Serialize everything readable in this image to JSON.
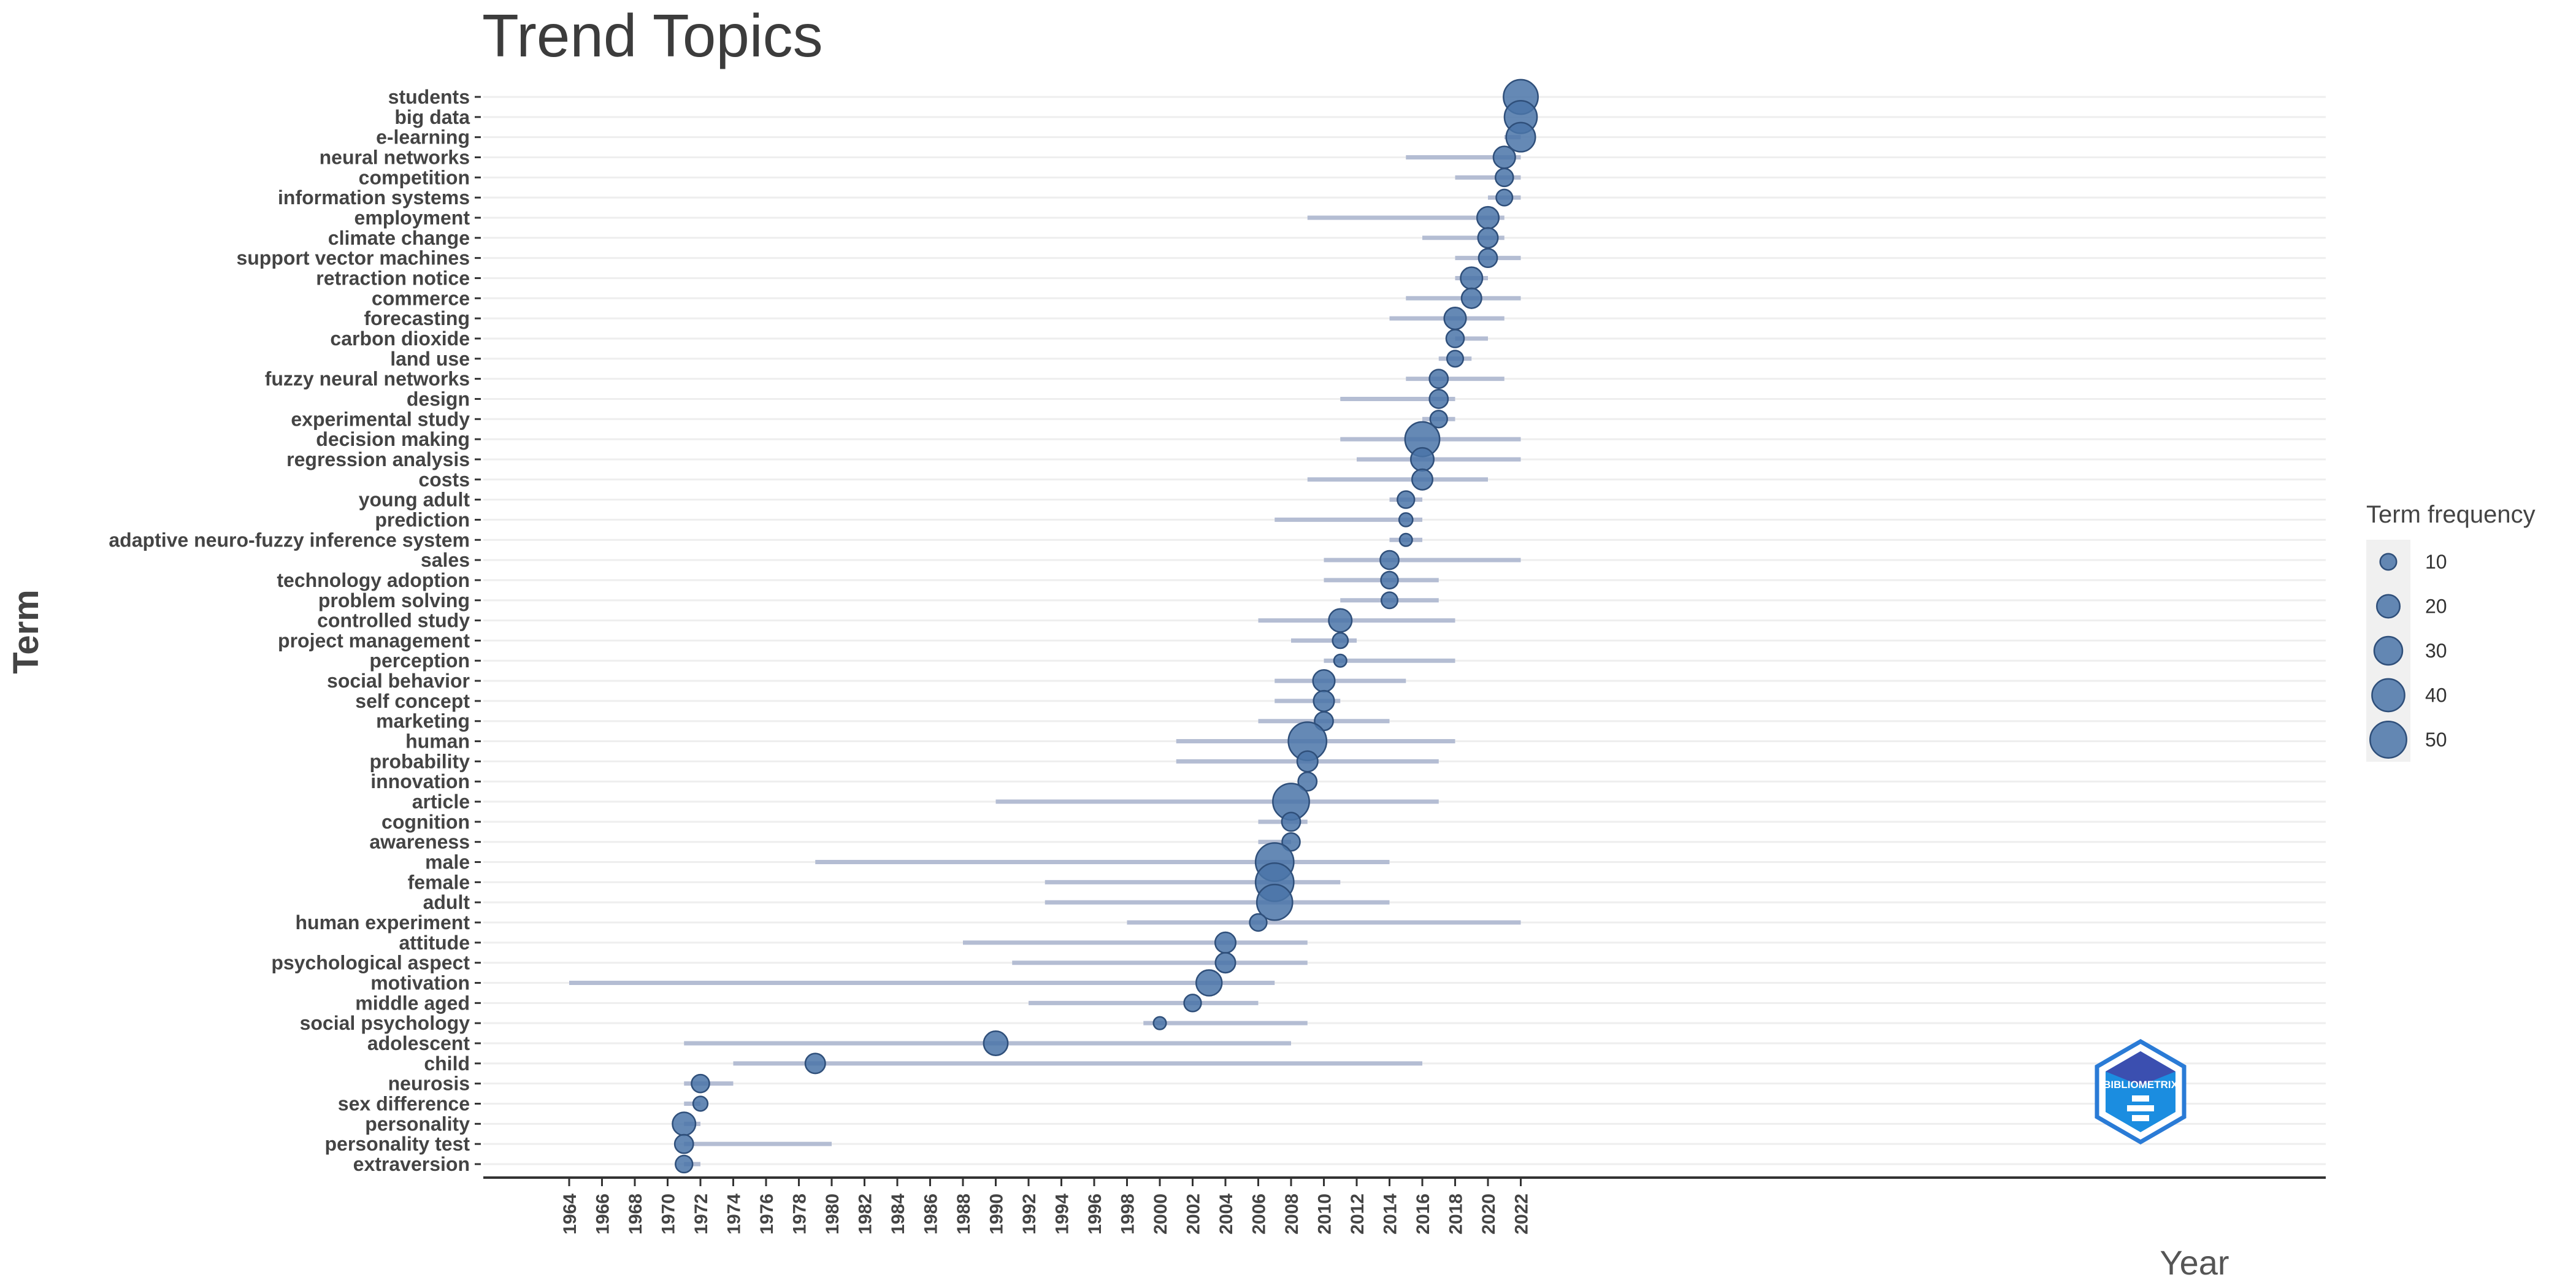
{
  "chart_data": {
    "type": "scatter",
    "title": "Trend Topics",
    "xlabel": "Year",
    "ylabel": "Term",
    "xlim": [
      1962,
      2025
    ],
    "x_ticks": [
      1964,
      1966,
      1968,
      1970,
      1972,
      1974,
      1976,
      1978,
      1980,
      1982,
      1984,
      1986,
      1988,
      1990,
      1992,
      1994,
      1996,
      1998,
      2000,
      2002,
      2004,
      2006,
      2008,
      2010,
      2012,
      2014,
      2016,
      2018,
      2020,
      2022
    ],
    "grid": "horizontal",
    "legend": {
      "title": "Term frequency",
      "placement": "right",
      "values": [
        10,
        20,
        30,
        40,
        50
      ]
    },
    "colors": {
      "point": "#4a74a8",
      "point_stroke": "#2f4f7a",
      "range_line": "#b4bdd3",
      "grid": "#eeeeee",
      "axis": "#333333"
    },
    "terms": [
      {
        "term": "students",
        "year_q1": 2022,
        "year_median": 2022,
        "year_q3": 2022,
        "freq": 45
      },
      {
        "term": "big data",
        "year_q1": 2022,
        "year_median": 2022,
        "year_q3": 2022,
        "freq": 40
      },
      {
        "term": "e-learning",
        "year_q1": 2021,
        "year_median": 2022,
        "year_q3": 2022,
        "freq": 32
      },
      {
        "term": "neural networks",
        "year_q1": 2015,
        "year_median": 2021,
        "year_q3": 2022,
        "freq": 18
      },
      {
        "term": "competition",
        "year_q1": 2018,
        "year_median": 2021,
        "year_q3": 2022,
        "freq": 12
      },
      {
        "term": "information systems",
        "year_q1": 2020,
        "year_median": 2021,
        "year_q3": 2022,
        "freq": 10
      },
      {
        "term": "employment",
        "year_q1": 2009,
        "year_median": 2020,
        "year_q3": 2021,
        "freq": 18
      },
      {
        "term": "climate change",
        "year_q1": 2016,
        "year_median": 2020,
        "year_q3": 2021,
        "freq": 15
      },
      {
        "term": "support vector machines",
        "year_q1": 2018,
        "year_median": 2020,
        "year_q3": 2022,
        "freq": 13
      },
      {
        "term": "retraction notice",
        "year_q1": 2018,
        "year_median": 2019,
        "year_q3": 2020,
        "freq": 18
      },
      {
        "term": "commerce",
        "year_q1": 2015,
        "year_median": 2019,
        "year_q3": 2022,
        "freq": 15
      },
      {
        "term": "forecasting",
        "year_q1": 2014,
        "year_median": 2018,
        "year_q3": 2021,
        "freq": 18
      },
      {
        "term": "carbon dioxide",
        "year_q1": 2018,
        "year_median": 2018,
        "year_q3": 2020,
        "freq": 12
      },
      {
        "term": "land use",
        "year_q1": 2017,
        "year_median": 2018,
        "year_q3": 2019,
        "freq": 10
      },
      {
        "term": "fuzzy neural networks",
        "year_q1": 2015,
        "year_median": 2017,
        "year_q3": 2021,
        "freq": 13
      },
      {
        "term": "design",
        "year_q1": 2011,
        "year_median": 2017,
        "year_q3": 2018,
        "freq": 13
      },
      {
        "term": "experimental study",
        "year_q1": 2016,
        "year_median": 2017,
        "year_q3": 2018,
        "freq": 11
      },
      {
        "term": "decision making",
        "year_q1": 2011,
        "year_median": 2016,
        "year_q3": 2022,
        "freq": 45
      },
      {
        "term": "regression analysis",
        "year_q1": 2012,
        "year_median": 2016,
        "year_q3": 2022,
        "freq": 20
      },
      {
        "term": "costs",
        "year_q1": 2009,
        "year_median": 2016,
        "year_q3": 2020,
        "freq": 16
      },
      {
        "term": "young adult",
        "year_q1": 2014,
        "year_median": 2015,
        "year_q3": 2016,
        "freq": 11
      },
      {
        "term": "prediction",
        "year_q1": 2007,
        "year_median": 2015,
        "year_q3": 2016,
        "freq": 7
      },
      {
        "term": "adaptive neuro-fuzzy inference system",
        "year_q1": 2014,
        "year_median": 2015,
        "year_q3": 2016,
        "freq": 6
      },
      {
        "term": "sales",
        "year_q1": 2010,
        "year_median": 2014,
        "year_q3": 2022,
        "freq": 13
      },
      {
        "term": "technology adoption",
        "year_q1": 2010,
        "year_median": 2014,
        "year_q3": 2017,
        "freq": 11
      },
      {
        "term": "problem solving",
        "year_q1": 2011,
        "year_median": 2014,
        "year_q3": 2017,
        "freq": 10
      },
      {
        "term": "controlled study",
        "year_q1": 2006,
        "year_median": 2011,
        "year_q3": 2018,
        "freq": 20
      },
      {
        "term": "project management",
        "year_q1": 2008,
        "year_median": 2011,
        "year_q3": 2012,
        "freq": 9
      },
      {
        "term": "perception",
        "year_q1": 2010,
        "year_median": 2011,
        "year_q3": 2018,
        "freq": 6
      },
      {
        "term": "social behavior",
        "year_q1": 2007,
        "year_median": 2010,
        "year_q3": 2015,
        "freq": 18
      },
      {
        "term": "self concept",
        "year_q1": 2007,
        "year_median": 2010,
        "year_q3": 2011,
        "freq": 16
      },
      {
        "term": "marketing",
        "year_q1": 2006,
        "year_median": 2010,
        "year_q3": 2014,
        "freq": 13
      },
      {
        "term": "human",
        "year_q1": 2001,
        "year_median": 2009,
        "year_q3": 2018,
        "freq": 55
      },
      {
        "term": "probability",
        "year_q1": 2001,
        "year_median": 2009,
        "year_q3": 2017,
        "freq": 16
      },
      {
        "term": "innovation",
        "year_q1": 2009,
        "year_median": 2009,
        "year_q3": 2009,
        "freq": 13
      },
      {
        "term": "article",
        "year_q1": 1990,
        "year_median": 2008,
        "year_q3": 2017,
        "freq": 50
      },
      {
        "term": "cognition",
        "year_q1": 2006,
        "year_median": 2008,
        "year_q3": 2009,
        "freq": 13
      },
      {
        "term": "awareness",
        "year_q1": 2006,
        "year_median": 2008,
        "year_q3": 2008,
        "freq": 12
      },
      {
        "term": "male",
        "year_q1": 1979,
        "year_median": 2007,
        "year_q3": 2014,
        "freq": 55
      },
      {
        "term": "female",
        "year_q1": 1993,
        "year_median": 2007,
        "year_q3": 2011,
        "freq": 55
      },
      {
        "term": "adult",
        "year_q1": 1993,
        "year_median": 2007,
        "year_q3": 2014,
        "freq": 48
      },
      {
        "term": "human experiment",
        "year_q1": 1998,
        "year_median": 2006,
        "year_q3": 2022,
        "freq": 11
      },
      {
        "term": "attitude",
        "year_q1": 1988,
        "year_median": 2004,
        "year_q3": 2009,
        "freq": 16
      },
      {
        "term": "psychological aspect",
        "year_q1": 1991,
        "year_median": 2004,
        "year_q3": 2009,
        "freq": 15
      },
      {
        "term": "motivation",
        "year_q1": 1964,
        "year_median": 2003,
        "year_q3": 2007,
        "freq": 25
      },
      {
        "term": "middle aged",
        "year_q1": 1992,
        "year_median": 2002,
        "year_q3": 2006,
        "freq": 11
      },
      {
        "term": "social psychology",
        "year_q1": 1999,
        "year_median": 2000,
        "year_q3": 2009,
        "freq": 6
      },
      {
        "term": "adolescent",
        "year_q1": 1971,
        "year_median": 1990,
        "year_q3": 2008,
        "freq": 22
      },
      {
        "term": "child",
        "year_q1": 1974,
        "year_median": 1979,
        "year_q3": 2016,
        "freq": 15
      },
      {
        "term": "neurosis",
        "year_q1": 1971,
        "year_median": 1972,
        "year_q3": 1974,
        "freq": 12
      },
      {
        "term": "sex difference",
        "year_q1": 1971,
        "year_median": 1972,
        "year_q3": 1972,
        "freq": 8
      },
      {
        "term": "personality",
        "year_q1": 1971,
        "year_median": 1971,
        "year_q3": 1972,
        "freq": 20
      },
      {
        "term": "personality test",
        "year_q1": 1971,
        "year_median": 1971,
        "year_q3": 1980,
        "freq": 13
      },
      {
        "term": "extraversion",
        "year_q1": 1971,
        "year_median": 1971,
        "year_q3": 1972,
        "freq": 11
      }
    ]
  },
  "logo": {
    "text": "BIBLIOMETRIX"
  }
}
